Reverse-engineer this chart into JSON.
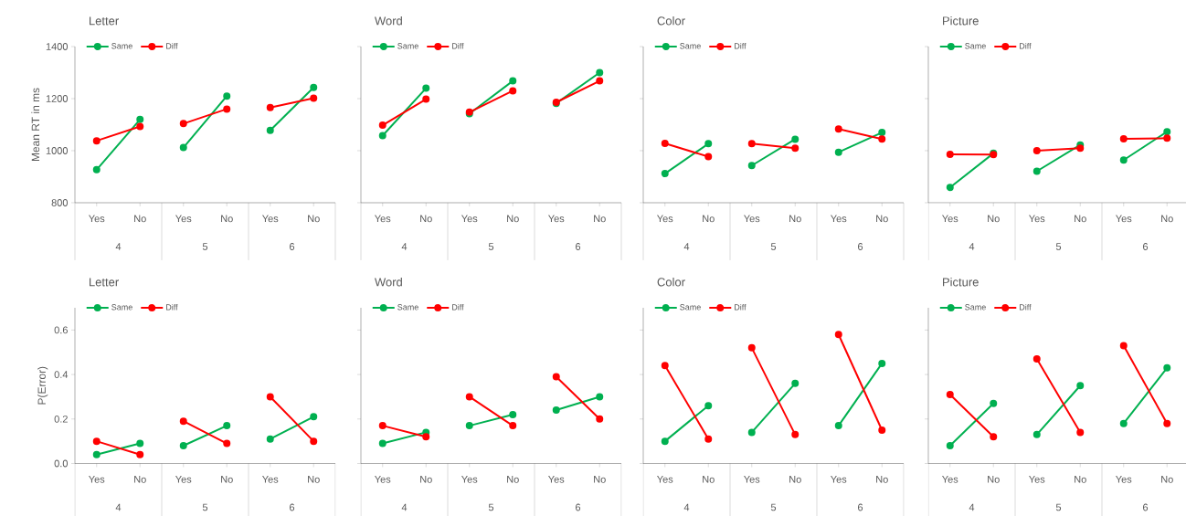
{
  "chart_data": [
    {
      "type": "line",
      "title": "Letter",
      "ylabel": "Mean RT in ms",
      "categories": [
        "Yes",
        "No",
        "Yes",
        "No",
        "Yes",
        "No"
      ],
      "annotations": [
        "4",
        "5",
        "6"
      ],
      "ylim": [
        800,
        1400
      ],
      "yticks": [
        800,
        1000,
        1200,
        1400
      ],
      "marker": "circle",
      "legend": "top",
      "grid": false,
      "series": [
        {
          "name": "Same",
          "color": "#00b050",
          "values": [
            927,
            1120,
            null,
            null,
            null,
            null
          ]
        },
        {
          "color": "#00b050",
          "values": [
            null,
            null,
            1012,
            1210,
            null,
            null
          ]
        },
        {
          "color": "#00b050",
          "values": [
            null,
            null,
            null,
            null,
            1078,
            1243
          ]
        },
        {
          "name": "Diff",
          "color": "#ff0000",
          "values": [
            1038,
            1093,
            null,
            null,
            null,
            null
          ]
        },
        {
          "color": "#ff0000",
          "values": [
            null,
            null,
            1104,
            1160,
            null,
            null
          ]
        },
        {
          "color": "#ff0000",
          "values": [
            null,
            null,
            null,
            null,
            1166,
            1202
          ]
        }
      ]
    },
    {
      "type": "line",
      "title": "Word",
      "categories": [
        "Yes",
        "No",
        "Yes",
        "No",
        "Yes",
        "No"
      ],
      "annotations": [
        "4",
        "5",
        "6"
      ],
      "ylim": [
        800,
        1400
      ],
      "yticks": [
        800,
        1000,
        1200,
        1400
      ],
      "tick_labels": "x",
      "marker": "circle",
      "legend": "top",
      "grid": false,
      "series": [
        {
          "name": "Same",
          "color": "#00b050",
          "values": [
            1058,
            1240,
            null,
            null,
            null,
            null
          ]
        },
        {
          "color": "#00b050",
          "values": [
            null,
            null,
            1142,
            1268,
            null,
            null
          ]
        },
        {
          "color": "#00b050",
          "values": [
            null,
            null,
            null,
            null,
            1182,
            1300
          ]
        },
        {
          "name": "Diff",
          "color": "#ff0000",
          "values": [
            1098,
            1198,
            null,
            null,
            null,
            null
          ]
        },
        {
          "color": "#ff0000",
          "values": [
            null,
            null,
            1148,
            1230,
            null,
            null
          ]
        },
        {
          "color": "#ff0000",
          "values": [
            null,
            null,
            null,
            null,
            1186,
            1268
          ]
        }
      ]
    },
    {
      "type": "line",
      "title": "Color",
      "categories": [
        "Yes",
        "No",
        "Yes",
        "No",
        "Yes",
        "No"
      ],
      "annotations": [
        "4",
        "5",
        "6"
      ],
      "ylim": [
        800,
        1400
      ],
      "yticks": [
        800,
        1000,
        1200,
        1400
      ],
      "tick_labels": "x",
      "marker": "circle",
      "legend": "top",
      "grid": false,
      "series": [
        {
          "name": "Same",
          "color": "#00b050",
          "values": [
            912,
            1027,
            null,
            null,
            null,
            null
          ]
        },
        {
          "color": "#00b050",
          "values": [
            null,
            null,
            943,
            1044,
            null,
            null
          ]
        },
        {
          "color": "#00b050",
          "values": [
            null,
            null,
            null,
            null,
            994,
            1070
          ]
        },
        {
          "name": "Diff",
          "color": "#ff0000",
          "values": [
            1028,
            977,
            null,
            null,
            null,
            null
          ]
        },
        {
          "color": "#ff0000",
          "values": [
            null,
            null,
            1027,
            1010,
            null,
            null
          ]
        },
        {
          "color": "#ff0000",
          "values": [
            null,
            null,
            null,
            null,
            1083,
            1045
          ]
        }
      ]
    },
    {
      "type": "line",
      "title": "Picture",
      "categories": [
        "Yes",
        "No",
        "Yes",
        "No",
        "Yes",
        "No"
      ],
      "annotations": [
        "4",
        "5",
        "6"
      ],
      "ylim": [
        800,
        1400
      ],
      "yticks": [
        800,
        1000,
        1200,
        1400
      ],
      "tick_labels": "x",
      "marker": "circle",
      "legend": "top",
      "grid": false,
      "series": [
        {
          "name": "Same",
          "color": "#00b050",
          "values": [
            859,
            990,
            null,
            null,
            null,
            null
          ]
        },
        {
          "color": "#00b050",
          "values": [
            null,
            null,
            921,
            1022,
            null,
            null
          ]
        },
        {
          "color": "#00b050",
          "values": [
            null,
            null,
            null,
            null,
            964,
            1073
          ]
        },
        {
          "name": "Diff",
          "color": "#ff0000",
          "values": [
            986,
            985,
            null,
            null,
            null,
            null
          ]
        },
        {
          "color": "#ff0000",
          "values": [
            null,
            null,
            1000,
            1010,
            null,
            null
          ]
        },
        {
          "color": "#ff0000",
          "values": [
            null,
            null,
            null,
            null,
            1046,
            1048
          ]
        }
      ]
    },
    {
      "type": "line",
      "title": "Letter",
      "ylabel": "P(Error)",
      "categories": [
        "Yes",
        "No",
        "Yes",
        "No",
        "Yes",
        "No"
      ],
      "annotations": [
        "4",
        "5",
        "6"
      ],
      "ylim": [
        0,
        0.7
      ],
      "yticks": [
        {
          "value": 0,
          "label": "0.0"
        },
        {
          "value": 0.2,
          "label": "0.2"
        },
        {
          "value": 0.4,
          "label": "0.4"
        },
        {
          "value": 0.6,
          "label": "0.6"
        }
      ],
      "marker": "circle",
      "legend": "top",
      "grid": false,
      "series": [
        {
          "name": "Same",
          "color": "#00b050",
          "values": [
            0.04,
            0.09,
            null,
            null,
            null,
            null
          ]
        },
        {
          "color": "#00b050",
          "values": [
            null,
            null,
            0.08,
            0.17,
            null,
            null
          ]
        },
        {
          "color": "#00b050",
          "values": [
            null,
            null,
            null,
            null,
            0.11,
            0.21
          ]
        },
        {
          "name": "Diff",
          "color": "#ff0000",
          "values": [
            0.1,
            0.04,
            null,
            null,
            null,
            null
          ]
        },
        {
          "color": "#ff0000",
          "values": [
            null,
            null,
            0.19,
            0.09,
            null,
            null
          ]
        },
        {
          "color": "#ff0000",
          "values": [
            null,
            null,
            null,
            null,
            0.3,
            0.1
          ]
        }
      ]
    },
    {
      "type": "line",
      "title": "Word",
      "categories": [
        "Yes",
        "No",
        "Yes",
        "No",
        "Yes",
        "No"
      ],
      "annotations": [
        "4",
        "5",
        "6"
      ],
      "ylim": [
        0,
        0.7
      ],
      "yticks": [
        0,
        0.2,
        0.4,
        0.6
      ],
      "tick_labels": "x",
      "marker": "circle",
      "legend": "top",
      "grid": false,
      "series": [
        {
          "name": "Same",
          "color": "#00b050",
          "values": [
            0.09,
            0.14,
            null,
            null,
            null,
            null
          ]
        },
        {
          "color": "#00b050",
          "values": [
            null,
            null,
            0.17,
            0.22,
            null,
            null
          ]
        },
        {
          "color": "#00b050",
          "values": [
            null,
            null,
            null,
            null,
            0.24,
            0.3
          ]
        },
        {
          "name": "Diff",
          "color": "#ff0000",
          "values": [
            0.17,
            0.12,
            null,
            null,
            null,
            null
          ]
        },
        {
          "color": "#ff0000",
          "values": [
            null,
            null,
            0.3,
            0.17,
            null,
            null
          ]
        },
        {
          "color": "#ff0000",
          "values": [
            null,
            null,
            null,
            null,
            0.39,
            0.2
          ]
        }
      ]
    },
    {
      "type": "line",
      "title": "Color",
      "categories": [
        "Yes",
        "No",
        "Yes",
        "No",
        "Yes",
        "No"
      ],
      "annotations": [
        "4",
        "5",
        "6"
      ],
      "ylim": [
        0,
        0.7
      ],
      "yticks": [
        0,
        0.2,
        0.4,
        0.6
      ],
      "tick_labels": "x",
      "marker": "circle",
      "legend": "top",
      "grid": false,
      "series": [
        {
          "name": "Same",
          "color": "#00b050",
          "values": [
            0.1,
            0.26,
            null,
            null,
            null,
            null
          ]
        },
        {
          "color": "#00b050",
          "values": [
            null,
            null,
            0.14,
            0.36,
            null,
            null
          ]
        },
        {
          "color": "#00b050",
          "values": [
            null,
            null,
            null,
            null,
            0.17,
            0.45
          ]
        },
        {
          "name": "Diff",
          "color": "#ff0000",
          "values": [
            0.44,
            0.11,
            null,
            null,
            null,
            null
          ]
        },
        {
          "color": "#ff0000",
          "values": [
            null,
            null,
            0.52,
            0.13,
            null,
            null
          ]
        },
        {
          "color": "#ff0000",
          "values": [
            null,
            null,
            null,
            null,
            0.58,
            0.15
          ]
        }
      ]
    },
    {
      "type": "line",
      "title": "Picture",
      "categories": [
        "Yes",
        "No",
        "Yes",
        "No",
        "Yes",
        "No"
      ],
      "annotations": [
        "4",
        "5",
        "6"
      ],
      "ylim": [
        0,
        0.7
      ],
      "yticks": [
        0,
        0.2,
        0.4,
        0.6
      ],
      "tick_labels": "x",
      "marker": "circle",
      "legend": "top",
      "grid": false,
      "series": [
        {
          "name": "Same",
          "color": "#00b050",
          "values": [
            0.08,
            0.27,
            null,
            null,
            null,
            null
          ]
        },
        {
          "color": "#00b050",
          "values": [
            null,
            null,
            0.13,
            0.35,
            null,
            null
          ]
        },
        {
          "color": "#00b050",
          "values": [
            null,
            null,
            null,
            null,
            0.18,
            0.43
          ]
        },
        {
          "name": "Diff",
          "color": "#ff0000",
          "values": [
            0.31,
            0.12,
            null,
            null,
            null,
            null
          ]
        },
        {
          "color": "#ff0000",
          "values": [
            null,
            null,
            0.47,
            0.14,
            null,
            null
          ]
        },
        {
          "color": "#ff0000",
          "values": [
            null,
            null,
            null,
            null,
            0.53,
            0.18
          ]
        }
      ]
    }
  ]
}
